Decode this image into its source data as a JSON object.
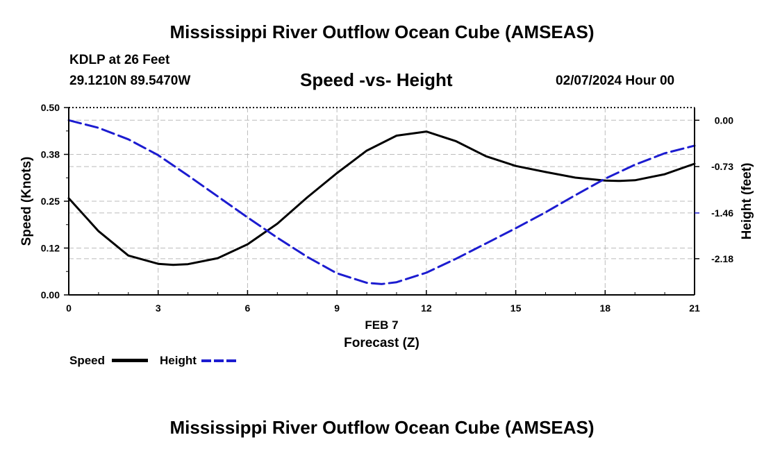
{
  "page": {
    "title": "Mississippi River Outflow Ocean Cube (AMSEAS)",
    "title_repeat": "Mississippi River Outflow Ocean Cube (AMSEAS)",
    "station": "KDLP at 26 Feet",
    "coords": "29.1210N  89.5470W",
    "subtitle": "Speed -vs- Height",
    "date": "02/07/2024 Hour 00"
  },
  "legend": {
    "speed_label": "Speed",
    "height_label": "Height"
  },
  "colors": {
    "speed": "#000000",
    "height": "#1c1cd0",
    "grid": "#bbbbbb"
  },
  "chart_data": {
    "type": "line",
    "title": "Speed -vs- Height",
    "xlabel_date": "FEB 7",
    "xlabel": "Forecast (Z)",
    "ylabel": "Speed (Knots)",
    "y2label": "Height (feet)",
    "xlim": [
      0,
      21
    ],
    "ylim": [
      0,
      0.5
    ],
    "y2lim": [
      -2.75,
      0.2
    ],
    "x_ticks": [
      0,
      3,
      6,
      9,
      12,
      15,
      18,
      21
    ],
    "x_tick_labels": [
      "0",
      "3",
      "6",
      "9",
      "12",
      "15",
      "18",
      "21"
    ],
    "y_ticks": [
      0,
      0.125,
      0.25,
      0.375,
      0.5
    ],
    "y_tick_labels": [
      "0.00",
      "0.12",
      "0.25",
      "0.38",
      "0.50"
    ],
    "y2_ticks": [
      0,
      -0.73,
      -1.46,
      -2.18
    ],
    "y2_tick_labels": [
      "0.00",
      "-0.73",
      "-1.46",
      "-2.18"
    ],
    "grid": true,
    "series": [
      {
        "name": "Speed",
        "axis": "left",
        "style": "solid",
        "x": [
          0,
          1,
          2,
          3,
          3.5,
          4,
          5,
          6,
          7,
          8,
          9,
          10,
          11,
          12,
          13,
          14,
          15,
          16,
          17,
          18,
          18.5,
          19,
          20,
          21
        ],
        "values": [
          0.258,
          0.17,
          0.105,
          0.083,
          0.08,
          0.082,
          0.098,
          0.135,
          0.19,
          0.26,
          0.325,
          0.385,
          0.425,
          0.436,
          0.41,
          0.37,
          0.344,
          0.328,
          0.313,
          0.305,
          0.304,
          0.306,
          0.322,
          0.35
        ]
      },
      {
        "name": "Height",
        "axis": "right",
        "style": "dashed",
        "x": [
          0,
          1,
          2,
          3,
          4,
          5,
          6,
          7,
          8,
          9,
          10,
          10.5,
          11,
          12,
          13,
          14,
          15,
          16,
          17,
          18,
          19,
          20,
          21
        ],
        "values": [
          0.0,
          -0.12,
          -0.3,
          -0.55,
          -0.87,
          -1.2,
          -1.53,
          -1.85,
          -2.15,
          -2.41,
          -2.56,
          -2.58,
          -2.55,
          -2.4,
          -2.18,
          -1.94,
          -1.7,
          -1.45,
          -1.18,
          -0.92,
          -0.7,
          -0.52,
          -0.4
        ]
      }
    ]
  }
}
